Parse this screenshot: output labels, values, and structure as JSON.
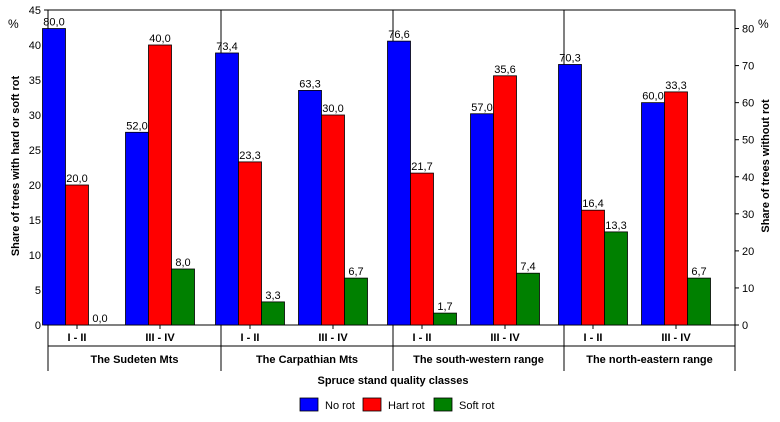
{
  "chart_data": {
    "type": "bar",
    "xlabel": "Spruce stand quality classes",
    "ylabel_left": "Share of trees with hard or soft rot",
    "ylabel_right": "Share of trees without rot",
    "unit_left": "%",
    "unit_right": "%",
    "ylim_left": [
      0,
      45
    ],
    "ylim_right": [
      0,
      85
    ],
    "yticks_left": [
      0,
      5,
      10,
      15,
      20,
      25,
      30,
      35,
      40,
      45
    ],
    "yticks_right": [
      0,
      10,
      20,
      30,
      40,
      50,
      60,
      70,
      80
    ],
    "grid": false,
    "legend_position": "bottom",
    "series": [
      {
        "name": "No rot",
        "color": "#0000ff",
        "axis": "right"
      },
      {
        "name": "Hart rot",
        "color": "#ff0000",
        "axis": "left"
      },
      {
        "name": "Soft rot",
        "color": "#008000",
        "axis": "left"
      }
    ],
    "groups": [
      {
        "name": "The Sudeten Mts",
        "classes": [
          {
            "label": "I - II",
            "values": [
              80.0,
              20.0,
              0.0
            ],
            "labels": [
              "80,0",
              "20,0",
              "0,0"
            ]
          },
          {
            "label": "III - IV",
            "values": [
              52.0,
              40.0,
              8.0
            ],
            "labels": [
              "52,0",
              "40,0",
              "8,0"
            ]
          }
        ]
      },
      {
        "name": "The Carpathian Mts",
        "classes": [
          {
            "label": "I - II",
            "values": [
              73.4,
              23.3,
              3.3
            ],
            "labels": [
              "73,4",
              "23,3",
              "3,3"
            ]
          },
          {
            "label": "III - IV",
            "values": [
              63.3,
              30.0,
              6.7
            ],
            "labels": [
              "63,3",
              "30,0",
              "6,7"
            ]
          }
        ]
      },
      {
        "name": "The south-western range",
        "classes": [
          {
            "label": "I - II",
            "values": [
              76.6,
              21.7,
              1.7
            ],
            "labels": [
              "76,6",
              "21,7",
              "1,7"
            ]
          },
          {
            "label": "III - IV",
            "values": [
              57.0,
              35.6,
              7.4
            ],
            "labels": [
              "57,0",
              "35,6",
              "7,4"
            ]
          }
        ]
      },
      {
        "name": "The north-eastern range",
        "classes": [
          {
            "label": "I - II",
            "values": [
              70.3,
              16.4,
              13.3
            ],
            "labels": [
              "70,3",
              "16,4",
              "13,3"
            ]
          },
          {
            "label": "III - IV",
            "values": [
              60.0,
              33.3,
              6.7
            ],
            "labels": [
              "60,0",
              "33,3",
              "6,7"
            ]
          }
        ]
      }
    ]
  }
}
